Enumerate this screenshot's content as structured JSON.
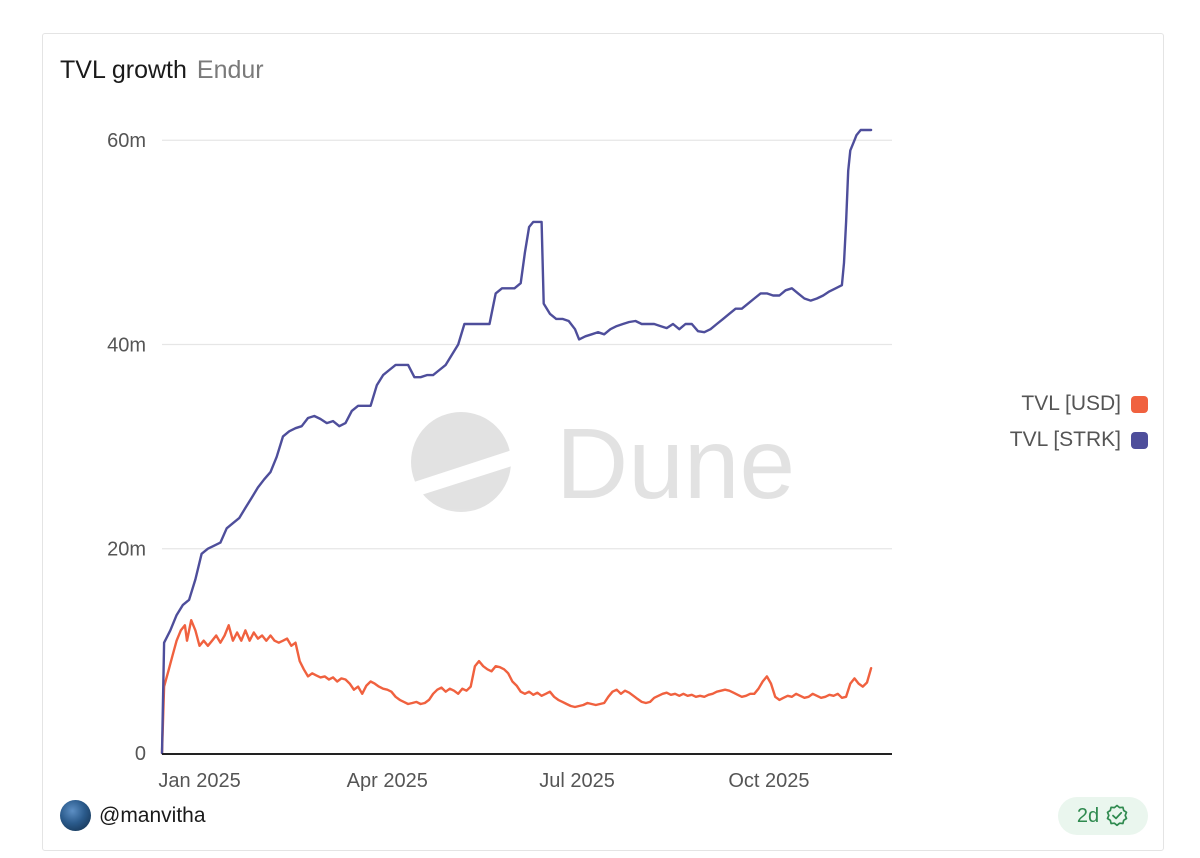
{
  "header": {
    "title": "TVL growth",
    "subtitle": "Endur"
  },
  "watermark": {
    "text": "Dune"
  },
  "footer": {
    "author": "@manvitha",
    "age": "2d"
  },
  "colors": {
    "usd": "#f0613f",
    "strk": "#4e4e9b",
    "grid": "#e6e6e6",
    "axis": "#222222",
    "badge_bg": "#eaf6ee",
    "badge_fg": "#2f8a4f"
  },
  "chart_data": {
    "type": "line",
    "title": "TVL growth",
    "subtitle": "Endur",
    "xlabel": "",
    "ylabel": "",
    "y_ticks": [
      {
        "value": 0,
        "label": "0"
      },
      {
        "value": 20000000,
        "label": "20m"
      },
      {
        "value": 40000000,
        "label": "40m"
      },
      {
        "value": 60000000,
        "label": "60m"
      }
    ],
    "x_ticks": [
      {
        "day": 18,
        "label": "Jan 2025"
      },
      {
        "day": 108,
        "label": "Apr 2025"
      },
      {
        "day": 199,
        "label": "Jul 2025"
      },
      {
        "day": 291,
        "label": "Oct 2025"
      }
    ],
    "xlim_days": [
      0,
      350
    ],
    "x_origin": "2024-12-14",
    "ylim": [
      0,
      61000000
    ],
    "legend_position": "right",
    "series": [
      {
        "name": "TVL [USD]",
        "color": "#f0613f",
        "points": [
          [
            0,
            0
          ],
          [
            1,
            6.5
          ],
          [
            3,
            8
          ],
          [
            5,
            9.5
          ],
          [
            7,
            11
          ],
          [
            9,
            12
          ],
          [
            11,
            12.5
          ],
          [
            12,
            11
          ],
          [
            14,
            13
          ],
          [
            16,
            12
          ],
          [
            18,
            10.5
          ],
          [
            20,
            11
          ],
          [
            22,
            10.5
          ],
          [
            24,
            11
          ],
          [
            26,
            11.5
          ],
          [
            28,
            10.8
          ],
          [
            30,
            11.5
          ],
          [
            32,
            12.5
          ],
          [
            34,
            11
          ],
          [
            36,
            11.8
          ],
          [
            38,
            11
          ],
          [
            40,
            12
          ],
          [
            42,
            11
          ],
          [
            44,
            11.8
          ],
          [
            46,
            11.2
          ],
          [
            48,
            11.5
          ],
          [
            50,
            11
          ],
          [
            52,
            11.5
          ],
          [
            54,
            11
          ],
          [
            56,
            10.8
          ],
          [
            58,
            11
          ],
          [
            60,
            11.2
          ],
          [
            62,
            10.5
          ],
          [
            64,
            10.8
          ],
          [
            66,
            9
          ],
          [
            68,
            8.2
          ],
          [
            70,
            7.5
          ],
          [
            72,
            7.8
          ],
          [
            74,
            7.6
          ],
          [
            76,
            7.4
          ],
          [
            78,
            7.5
          ],
          [
            80,
            7.2
          ],
          [
            82,
            7.4
          ],
          [
            84,
            7
          ],
          [
            86,
            7.3
          ],
          [
            88,
            7.2
          ],
          [
            90,
            6.8
          ],
          [
            92,
            6.2
          ],
          [
            94,
            6.5
          ],
          [
            96,
            5.8
          ],
          [
            98,
            6.6
          ],
          [
            100,
            7
          ],
          [
            102,
            6.8
          ],
          [
            104,
            6.5
          ],
          [
            106,
            6.3
          ],
          [
            108,
            6.2
          ],
          [
            110,
            6
          ],
          [
            112,
            5.5
          ],
          [
            114,
            5.2
          ],
          [
            116,
            5
          ],
          [
            118,
            4.8
          ],
          [
            120,
            4.9
          ],
          [
            122,
            5
          ],
          [
            124,
            4.8
          ],
          [
            126,
            4.9
          ],
          [
            128,
            5.2
          ],
          [
            130,
            5.8
          ],
          [
            132,
            6.2
          ],
          [
            134,
            6.4
          ],
          [
            136,
            6
          ],
          [
            138,
            6.3
          ],
          [
            140,
            6.1
          ],
          [
            142,
            5.8
          ],
          [
            144,
            6.3
          ],
          [
            146,
            6.1
          ],
          [
            148,
            6.5
          ],
          [
            150,
            8.5
          ],
          [
            152,
            9
          ],
          [
            154,
            8.5
          ],
          [
            156,
            8.2
          ],
          [
            158,
            8
          ],
          [
            160,
            8.5
          ],
          [
            162,
            8.4
          ],
          [
            164,
            8.2
          ],
          [
            166,
            7.8
          ],
          [
            168,
            7
          ],
          [
            170,
            6.6
          ],
          [
            172,
            6
          ],
          [
            174,
            5.8
          ],
          [
            176,
            6
          ],
          [
            178,
            5.7
          ],
          [
            180,
            5.9
          ],
          [
            182,
            5.6
          ],
          [
            184,
            5.8
          ],
          [
            186,
            6
          ],
          [
            188,
            5.5
          ],
          [
            190,
            5.2
          ],
          [
            192,
            5
          ],
          [
            194,
            4.8
          ],
          [
            196,
            4.6
          ],
          [
            198,
            4.5
          ],
          [
            200,
            4.6
          ],
          [
            202,
            4.7
          ],
          [
            204,
            4.9
          ],
          [
            206,
            4.8
          ],
          [
            208,
            4.7
          ],
          [
            210,
            4.8
          ],
          [
            212,
            4.9
          ],
          [
            214,
            5.5
          ],
          [
            216,
            6
          ],
          [
            218,
            6.2
          ],
          [
            220,
            5.8
          ],
          [
            222,
            6.1
          ],
          [
            224,
            5.9
          ],
          [
            226,
            5.6
          ],
          [
            228,
            5.3
          ],
          [
            230,
            5
          ],
          [
            232,
            4.9
          ],
          [
            234,
            5
          ],
          [
            236,
            5.4
          ],
          [
            238,
            5.6
          ],
          [
            240,
            5.8
          ],
          [
            242,
            5.9
          ],
          [
            244,
            5.7
          ],
          [
            246,
            5.8
          ],
          [
            248,
            5.6
          ],
          [
            250,
            5.8
          ],
          [
            252,
            5.6
          ],
          [
            254,
            5.7
          ],
          [
            256,
            5.5
          ],
          [
            258,
            5.6
          ],
          [
            260,
            5.5
          ],
          [
            262,
            5.7
          ],
          [
            264,
            5.8
          ],
          [
            266,
            6
          ],
          [
            268,
            6.1
          ],
          [
            270,
            6.2
          ],
          [
            272,
            6.1
          ],
          [
            274,
            5.9
          ],
          [
            276,
            5.7
          ],
          [
            278,
            5.5
          ],
          [
            280,
            5.6
          ],
          [
            282,
            5.8
          ],
          [
            284,
            5.8
          ],
          [
            286,
            6.3
          ],
          [
            288,
            7
          ],
          [
            290,
            7.5
          ],
          [
            292,
            6.8
          ],
          [
            294,
            5.5
          ],
          [
            296,
            5.2
          ],
          [
            298,
            5.4
          ],
          [
            300,
            5.6
          ],
          [
            302,
            5.5
          ],
          [
            304,
            5.8
          ],
          [
            306,
            5.6
          ],
          [
            308,
            5.4
          ],
          [
            310,
            5.5
          ],
          [
            312,
            5.8
          ],
          [
            314,
            5.6
          ],
          [
            316,
            5.4
          ],
          [
            318,
            5.5
          ],
          [
            320,
            5.7
          ],
          [
            322,
            5.6
          ],
          [
            324,
            5.8
          ],
          [
            326,
            5.4
          ],
          [
            328,
            5.5
          ],
          [
            330,
            6.8
          ],
          [
            332,
            7.3
          ],
          [
            334,
            6.8
          ],
          [
            336,
            6.5
          ],
          [
            338,
            6.9
          ],
          [
            340,
            8.3
          ]
        ]
      },
      {
        "name": "TVL [STRK]",
        "color": "#4e4e9b",
        "points": [
          [
            0,
            0
          ],
          [
            1,
            10.8
          ],
          [
            4,
            12
          ],
          [
            7,
            13.5
          ],
          [
            10,
            14.5
          ],
          [
            13,
            15
          ],
          [
            16,
            17
          ],
          [
            19,
            19.5
          ],
          [
            22,
            20
          ],
          [
            25,
            20.3
          ],
          [
            28,
            20.6
          ],
          [
            31,
            22
          ],
          [
            34,
            22.5
          ],
          [
            37,
            23
          ],
          [
            40,
            24
          ],
          [
            43,
            25
          ],
          [
            46,
            26
          ],
          [
            49,
            26.8
          ],
          [
            52,
            27.5
          ],
          [
            55,
            29
          ],
          [
            58,
            31
          ],
          [
            61,
            31.5
          ],
          [
            64,
            31.8
          ],
          [
            67,
            32
          ],
          [
            70,
            32.8
          ],
          [
            73,
            33
          ],
          [
            76,
            32.7
          ],
          [
            79,
            32.3
          ],
          [
            82,
            32.5
          ],
          [
            85,
            32
          ],
          [
            88,
            32.3
          ],
          [
            91,
            33.5
          ],
          [
            94,
            34
          ],
          [
            97,
            34
          ],
          [
            100,
            34
          ],
          [
            103,
            36
          ],
          [
            106,
            37
          ],
          [
            109,
            37.5
          ],
          [
            112,
            38
          ],
          [
            115,
            38
          ],
          [
            118,
            38
          ],
          [
            121,
            36.8
          ],
          [
            124,
            36.8
          ],
          [
            127,
            37
          ],
          [
            130,
            37
          ],
          [
            133,
            37.5
          ],
          [
            136,
            38
          ],
          [
            139,
            39
          ],
          [
            142,
            40
          ],
          [
            145,
            42
          ],
          [
            148,
            42
          ],
          [
            151,
            42
          ],
          [
            154,
            42
          ],
          [
            157,
            42
          ],
          [
            160,
            45
          ],
          [
            163,
            45.5
          ],
          [
            166,
            45.5
          ],
          [
            169,
            45.5
          ],
          [
            172,
            46
          ],
          [
            174,
            49
          ],
          [
            176,
            51.5
          ],
          [
            178,
            52
          ],
          [
            180,
            52
          ],
          [
            182,
            52
          ],
          [
            183,
            44
          ],
          [
            186,
            43
          ],
          [
            189,
            42.5
          ],
          [
            192,
            42.5
          ],
          [
            195,
            42.3
          ],
          [
            198,
            41.5
          ],
          [
            200,
            40.5
          ],
          [
            203,
            40.8
          ],
          [
            206,
            41
          ],
          [
            209,
            41.2
          ],
          [
            212,
            41
          ],
          [
            215,
            41.5
          ],
          [
            218,
            41.8
          ],
          [
            221,
            42
          ],
          [
            224,
            42.2
          ],
          [
            227,
            42.3
          ],
          [
            230,
            42
          ],
          [
            233,
            42
          ],
          [
            236,
            42
          ],
          [
            239,
            41.8
          ],
          [
            242,
            41.6
          ],
          [
            245,
            42
          ],
          [
            248,
            41.5
          ],
          [
            251,
            42
          ],
          [
            254,
            42
          ],
          [
            257,
            41.3
          ],
          [
            260,
            41.2
          ],
          [
            263,
            41.5
          ],
          [
            266,
            42
          ],
          [
            269,
            42.5
          ],
          [
            272,
            43
          ],
          [
            275,
            43.5
          ],
          [
            278,
            43.5
          ],
          [
            281,
            44
          ],
          [
            284,
            44.5
          ],
          [
            287,
            45
          ],
          [
            290,
            45
          ],
          [
            293,
            44.8
          ],
          [
            296,
            44.8
          ],
          [
            299,
            45.3
          ],
          [
            302,
            45.5
          ],
          [
            305,
            45
          ],
          [
            308,
            44.5
          ],
          [
            311,
            44.3
          ],
          [
            314,
            44.5
          ],
          [
            317,
            44.8
          ],
          [
            320,
            45.2
          ],
          [
            323,
            45.5
          ],
          [
            326,
            45.8
          ],
          [
            327,
            48
          ],
          [
            328,
            52
          ],
          [
            329,
            57
          ],
          [
            330,
            59
          ],
          [
            331,
            59.5
          ],
          [
            332,
            60
          ],
          [
            333,
            60.5
          ],
          [
            335,
            61
          ],
          [
            338,
            61
          ],
          [
            340,
            61
          ]
        ]
      }
    ]
  }
}
